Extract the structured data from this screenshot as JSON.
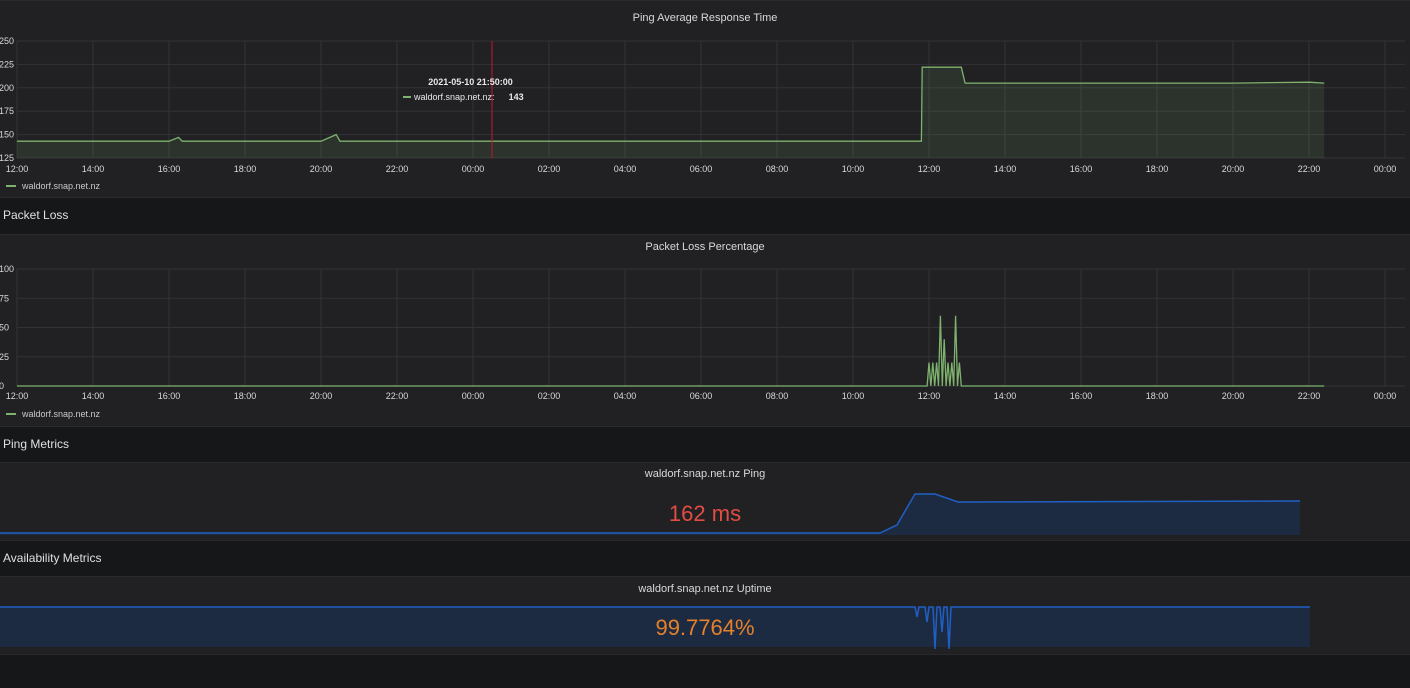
{
  "ping_panel": {
    "title": "Ping Average Response Time",
    "legend": "waldorf.snap.net.nz",
    "tooltip": {
      "time": "2021-05-10 21:50:00",
      "series": "waldorf.snap.net.nz:",
      "value": "143"
    }
  },
  "packet_loss_row": {
    "title": "Packet Loss"
  },
  "loss_panel": {
    "title": "Packet Loss Percentage",
    "legend": "waldorf.snap.net.nz"
  },
  "ping_metrics_row": {
    "title": "Ping Metrics"
  },
  "ping_stat": {
    "title": "waldorf.snap.net.nz Ping",
    "value": "162 ms",
    "color": "#e24d42"
  },
  "availability_row": {
    "title": "Availability Metrics"
  },
  "uptime_stat": {
    "title": "waldorf.snap.net.nz Uptime",
    "value": "99.7764%",
    "color": "#e5812b"
  },
  "colors": {
    "series": "#7eb26d",
    "sparkline": "#1f60c4",
    "grid": "#333336",
    "axis_text": "#d8d9da"
  },
  "chart_data": [
    {
      "type": "line",
      "title": "Ping Average Response Time",
      "x_ticks": [
        "12:00",
        "14:00",
        "16:00",
        "18:00",
        "20:00",
        "22:00",
        "00:00",
        "02:00",
        "04:00",
        "06:00",
        "08:00",
        "10:00",
        "12:00",
        "14:00",
        "16:00",
        "18:00",
        "20:00",
        "22:00",
        "00:00"
      ],
      "y_ticks": [
        "125",
        "150",
        "175",
        "200",
        "225",
        "250"
      ],
      "ylim": [
        125,
        250
      ],
      "grid": true,
      "legend_placement": "bottom-left",
      "series": [
        {
          "name": "waldorf.snap.net.nz",
          "x_hours": [
            0,
            4,
            4.25,
            4.35,
            8.0,
            8.4,
            8.5,
            12,
            14,
            16,
            18,
            20,
            22,
            23.8,
            23.82,
            24,
            24.85,
            24.95,
            26,
            28,
            30,
            32,
            34,
            34.4
          ],
          "values": [
            143,
            143,
            147,
            143,
            143,
            150,
            143,
            143,
            143,
            143,
            143,
            143,
            143,
            143,
            222,
            222,
            222,
            205,
            205,
            205,
            205,
            205,
            206,
            205
          ]
        }
      ]
    },
    {
      "type": "line",
      "title": "Packet Loss Percentage",
      "x_ticks": [
        "12:00",
        "14:00",
        "16:00",
        "18:00",
        "20:00",
        "22:00",
        "00:00",
        "02:00",
        "04:00",
        "06:00",
        "08:00",
        "10:00",
        "12:00",
        "14:00",
        "16:00",
        "18:00",
        "20:00",
        "22:00",
        "00:00"
      ],
      "y_ticks": [
        "0",
        "25",
        "50",
        "75",
        "100"
      ],
      "ylim": [
        0,
        100
      ],
      "grid": true,
      "legend_placement": "bottom-left",
      "series": [
        {
          "name": "waldorf.snap.net.nz",
          "x_hours": [
            0,
            23.95,
            24.0,
            24.05,
            24.1,
            24.15,
            24.2,
            24.25,
            24.3,
            24.35,
            24.4,
            24.45,
            24.5,
            24.55,
            24.6,
            24.65,
            24.7,
            24.75,
            24.8,
            24.85,
            24.9,
            24.95,
            34.4
          ],
          "values": [
            0,
            0,
            20,
            0,
            20,
            0,
            20,
            0,
            60,
            0,
            40,
            0,
            20,
            0,
            20,
            0,
            60,
            0,
            20,
            0,
            0,
            0,
            0
          ]
        }
      ]
    }
  ]
}
